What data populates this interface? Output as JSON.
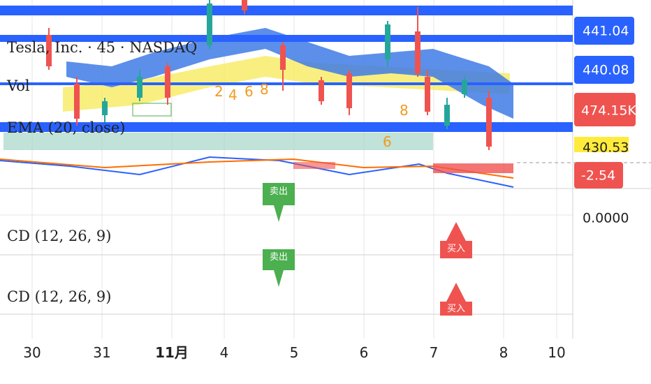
{
  "header": {
    "symbol": "Tesla, Inc. · 45 · NASDAQ"
  },
  "legends": [
    "Vol",
    "EMA (20, close)",
    "CD (12, 26, 9)",
    "CD (12, 26, 9)"
  ],
  "price_labels": {
    "upper": "441.04",
    "lower": "440.08",
    "volume": "474.15K",
    "ema": "430.53",
    "macd": "-2.54",
    "zero": "0.0000"
  },
  "counts": [
    "2",
    "4",
    "6",
    "8",
    "8",
    "6"
  ],
  "signals": [
    "卖出",
    "卖出",
    "买入",
    "买入"
  ],
  "time_axis": [
    "30",
    "31",
    "11月",
    "4",
    "5",
    "6",
    "7",
    "8",
    "10"
  ]
}
